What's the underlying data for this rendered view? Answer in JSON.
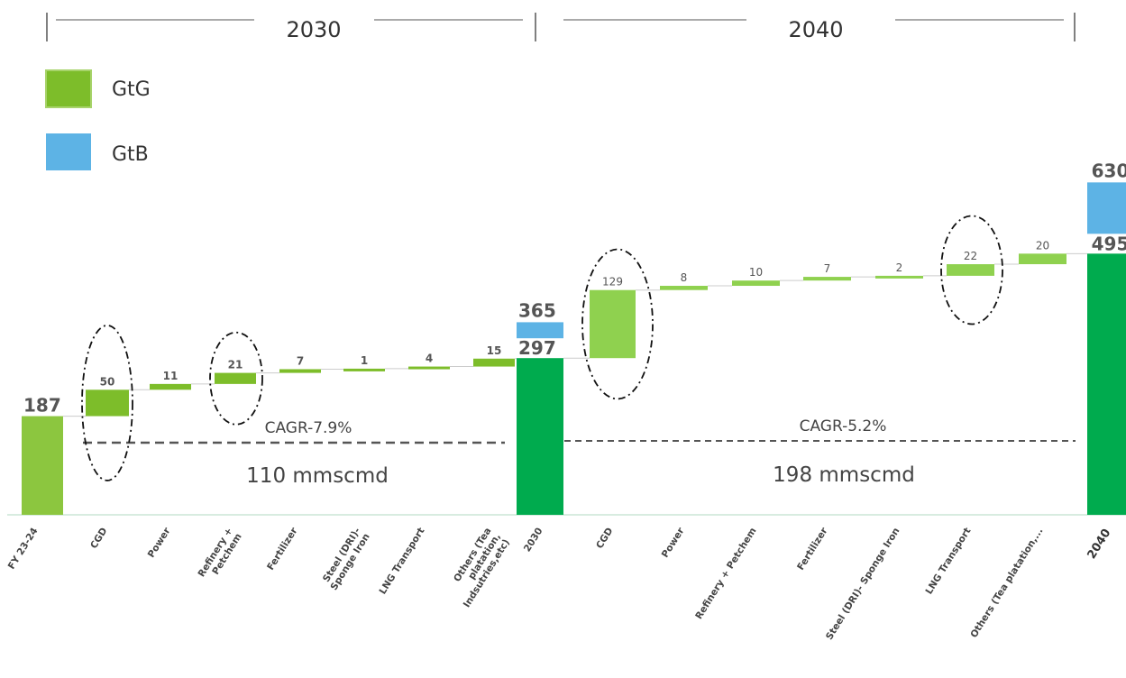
{
  "chart_data": {
    "type": "waterfall",
    "periods": [
      {
        "label": "2030",
        "cagr": "CAGR-7.9%",
        "increment": "110 mmscmd"
      },
      {
        "label": "2040",
        "cagr": "CAGR-5.2%",
        "increment": "198 mmscmd"
      }
    ],
    "legend": [
      {
        "name": "GtG",
        "color": "#7dbd2a"
      },
      {
        "name": "GtB",
        "color": "#5db3e5"
      }
    ],
    "colors": {
      "gtg_light": "#8cc63f",
      "gtg_dark": "#00ab4e",
      "gtg_step": "#7dbd2a",
      "gtg_step_light": "#8fd14f",
      "gtb": "#5db3e5"
    },
    "y_scale": {
      "min": 0,
      "max": 630
    },
    "bars": [
      {
        "id": "fy",
        "category": "FY 23-24",
        "kind": "total",
        "gtg": 187,
        "label": "187"
      },
      {
        "id": "cgd1",
        "category": "CGD",
        "kind": "step",
        "value": 50,
        "label": "50",
        "highlight": true
      },
      {
        "id": "pow1",
        "category": "Power",
        "kind": "step",
        "value": 11,
        "label": "11"
      },
      {
        "id": "ref1",
        "category": "Refinery + Petchem",
        "kind": "step",
        "value": 21,
        "label": "21",
        "highlight": true
      },
      {
        "id": "fer1",
        "category": "Fertilizer",
        "kind": "step",
        "value": 7,
        "label": "7"
      },
      {
        "id": "ste1",
        "category": "Steel (DRI)- Sponge Iron",
        "kind": "step",
        "value": 1,
        "label": "1"
      },
      {
        "id": "lng1",
        "category": "LNG Transport",
        "kind": "step",
        "value": 4,
        "label": "4"
      },
      {
        "id": "oth1",
        "category": "Others (Tea platation, Indsutries,etc)",
        "kind": "step",
        "value": 15,
        "label": "15"
      },
      {
        "id": "t2030",
        "category": "2030",
        "kind": "total",
        "gtg": 297,
        "total": 365,
        "label": "297",
        "total_label": "365"
      },
      {
        "id": "cgd2",
        "category": "CGD",
        "kind": "step",
        "value": 129,
        "label": "129",
        "highlight": true
      },
      {
        "id": "pow2",
        "category": "Power",
        "kind": "step",
        "value": 8,
        "label": "8"
      },
      {
        "id": "ref2",
        "category": "Refinery + Petchem",
        "kind": "step",
        "value": 10,
        "label": "10"
      },
      {
        "id": "fer2",
        "category": "Fertilizer",
        "kind": "step",
        "value": 7,
        "label": "7"
      },
      {
        "id": "ste2",
        "category": "Steel (DRI)- Sponge Iron",
        "kind": "step",
        "value": 2,
        "label": "2"
      },
      {
        "id": "lng2",
        "category": "LNG Transport",
        "kind": "step",
        "value": 22,
        "label": "22",
        "highlight": true
      },
      {
        "id": "oth2",
        "category": "Others (Tea platation,...",
        "kind": "step",
        "value": 20,
        "label": "20"
      },
      {
        "id": "t2040",
        "category": "2040",
        "kind": "total",
        "gtg": 495,
        "total": 630,
        "label": "495",
        "total_label": "630"
      }
    ]
  }
}
